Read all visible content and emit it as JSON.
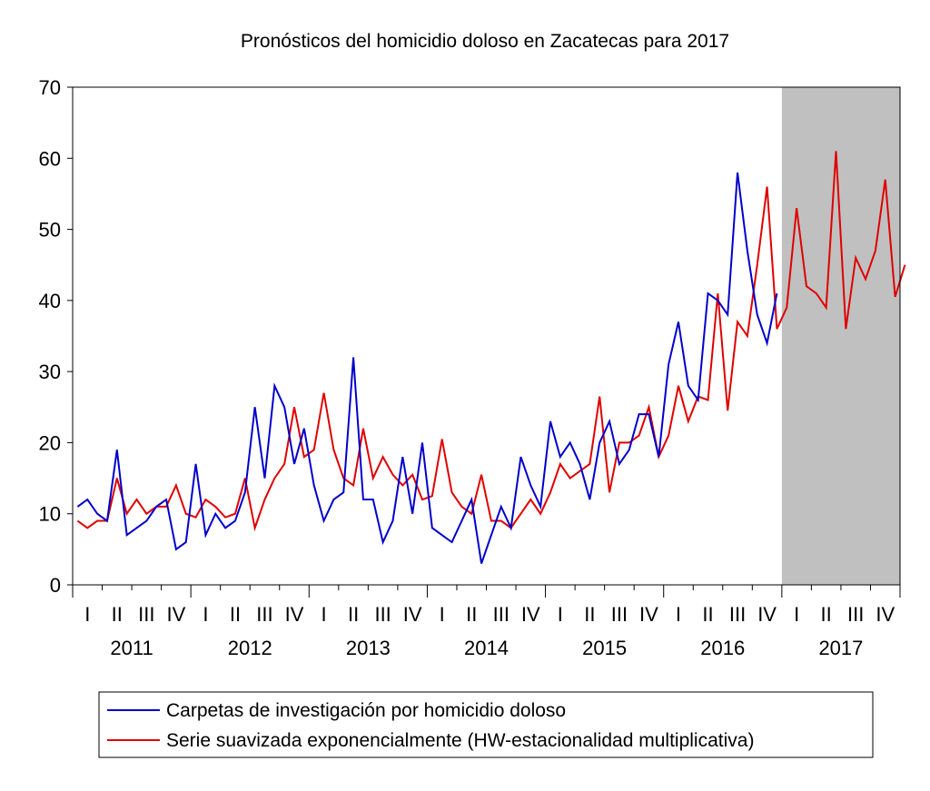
{
  "chart_data": {
    "type": "line",
    "title": "Pronósticos del homicidio doloso en Zacatecas para 2017",
    "xlabel": "",
    "ylabel": "",
    "ylim": [
      0,
      70
    ],
    "yticks": [
      0,
      10,
      20,
      30,
      40,
      50,
      60,
      70
    ],
    "quarter_labels": [
      "I",
      "II",
      "III",
      "IV"
    ],
    "years": [
      "2011",
      "2012",
      "2013",
      "2014",
      "2015",
      "2016",
      "2017"
    ],
    "x_start": "2011-01",
    "shaded_period": {
      "from": "2017-01",
      "to": "2017-12",
      "color": "#c0c0c0"
    },
    "legend_position": "bottom",
    "series": [
      {
        "name": "Carpetas de investigación por homicidio doloso",
        "color": "#0000cc",
        "values": [
          11,
          12,
          10,
          9,
          19,
          7,
          8,
          9,
          11,
          12,
          5,
          6,
          17,
          7,
          10,
          8,
          9,
          13,
          25,
          15,
          28,
          25,
          17,
          22,
          14,
          9,
          12,
          13,
          32,
          12,
          12,
          6,
          9,
          18,
          10,
          20,
          8,
          7,
          6,
          9,
          12,
          3,
          7,
          11,
          8,
          18,
          14,
          11,
          23,
          18,
          20,
          17,
          12,
          20,
          23,
          17,
          19,
          24,
          24,
          18,
          31,
          37,
          28,
          26,
          41,
          40,
          38,
          58,
          47,
          38,
          34,
          41
        ]
      },
      {
        "name": "Serie suavizada exponencialmente (HW-estacionalidad multiplicativa)",
        "color": "#e00000",
        "values": [
          9,
          8,
          9,
          9,
          15,
          10,
          12,
          10,
          11,
          11,
          14,
          10,
          9.5,
          12,
          11,
          9.5,
          10,
          15,
          8,
          12,
          15,
          17,
          25,
          18,
          19,
          27,
          19,
          15,
          14,
          22,
          15,
          18,
          15.5,
          14,
          15.5,
          12,
          12.5,
          20.5,
          13,
          11,
          10,
          15.5,
          9,
          9,
          8,
          10,
          12,
          10,
          13,
          17,
          15,
          16,
          17,
          26.5,
          13,
          20,
          20,
          21,
          25,
          18,
          21,
          28,
          23,
          26.5,
          26,
          41,
          24.5,
          37,
          35,
          45,
          56,
          36,
          39,
          53,
          42,
          41,
          39,
          61,
          36,
          46,
          43,
          47,
          57,
          40.5,
          45
        ]
      }
    ]
  }
}
